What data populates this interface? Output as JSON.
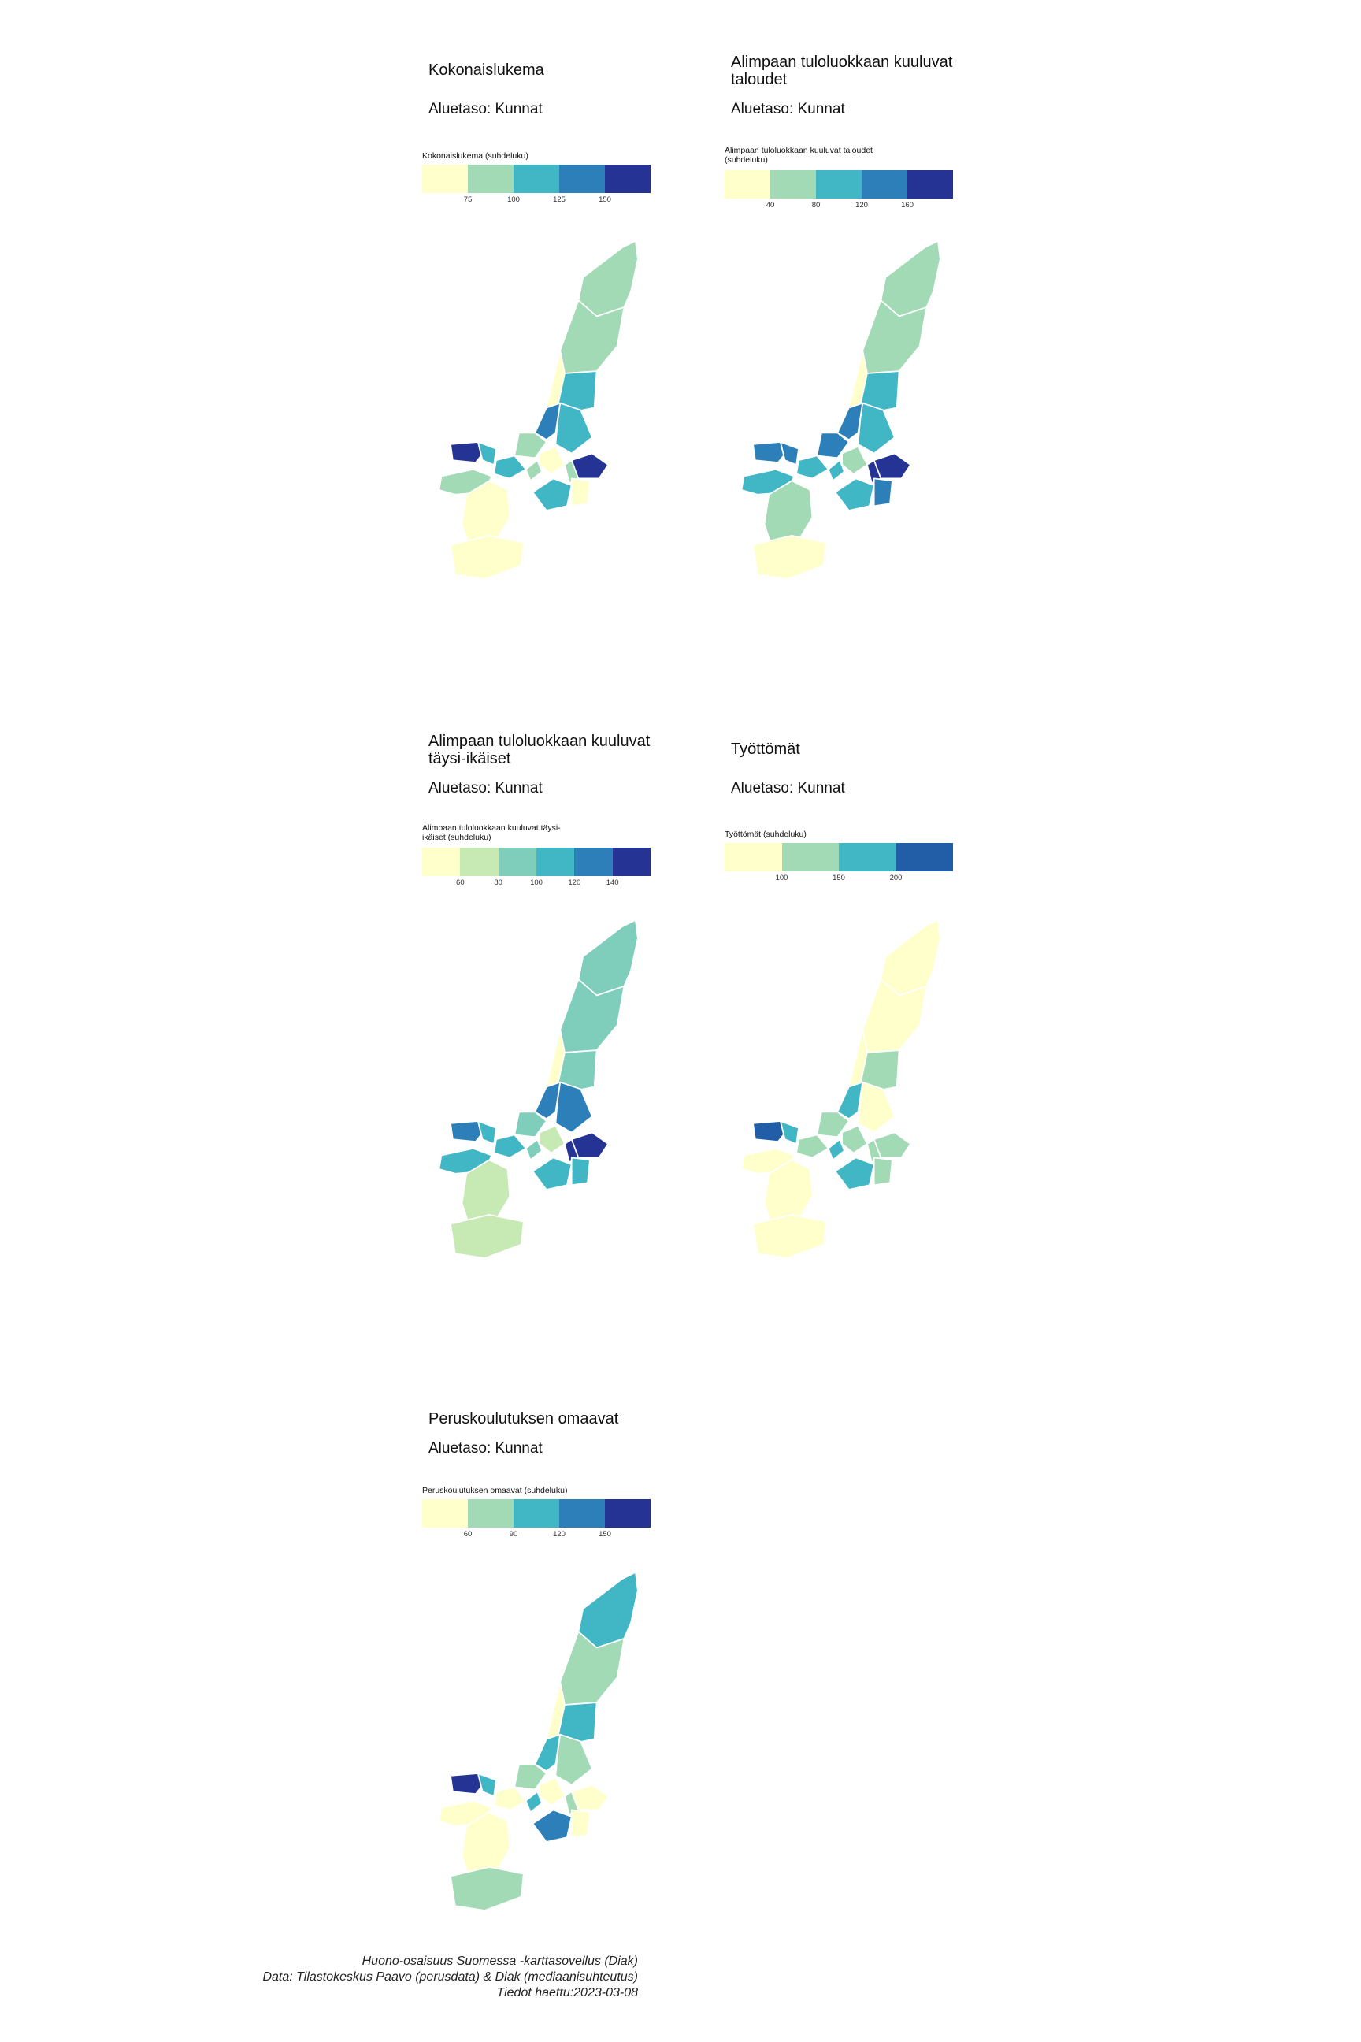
{
  "panels": [
    {
      "title": "Kokonaislukema",
      "subtitle": "Aluetaso: Kunnat",
      "legend_title": "Kokonaislukema (suhdeluku)",
      "legend_ticks": [
        "75",
        "100",
        "125",
        "150"
      ],
      "legend_colors": [
        "#ffffcc",
        "#a1dab4",
        "#41b6c4",
        "#2c7fb8",
        "#253494"
      ],
      "region_classes": [
        1,
        1,
        0,
        2,
        3,
        2,
        1,
        2,
        1,
        0,
        4,
        2,
        1,
        0,
        0,
        2,
        4,
        1,
        0
      ]
    },
    {
      "title": "Alimpaan tuloluokkaan kuuluvat taloudet",
      "subtitle": "Aluetaso: Kunnat",
      "legend_title": "Alimpaan tuloluokkaan kuuluvat taloudet (suhdeluku)",
      "legend_ticks": [
        "40",
        "80",
        "120",
        "160"
      ],
      "legend_colors": [
        "#ffffcc",
        "#a1dab4",
        "#41b6c4",
        "#2c7fb8",
        "#253494"
      ],
      "region_classes": [
        1,
        1,
        0,
        2,
        3,
        2,
        3,
        2,
        2,
        1,
        3,
        3,
        2,
        1,
        0,
        2,
        4,
        4,
        3
      ]
    },
    {
      "title": "Alimpaan tuloluokkaan kuuluvat täysi-ikäiset",
      "subtitle": "Aluetaso: Kunnat",
      "legend_title": "Alimpaan tuloluokkaan kuuluvat täysi-ikäiset (suhdeluku)",
      "legend_ticks": [
        "60",
        "80",
        "100",
        "120",
        "140"
      ],
      "legend_colors": [
        "#ffffcc",
        "#c7e9b4",
        "#7fcdbb",
        "#41b6c4",
        "#2c7fb8",
        "#253494"
      ],
      "region_classes": [
        2,
        2,
        0,
        2,
        4,
        4,
        2,
        3,
        2,
        1,
        4,
        3,
        3,
        1,
        1,
        3,
        5,
        5,
        3
      ]
    },
    {
      "title": "Työttömät",
      "subtitle": "Aluetaso: Kunnat",
      "legend_title": "Työttömät (suhdeluku)",
      "legend_ticks": [
        "100",
        "150",
        "200"
      ],
      "legend_colors": [
        "#ffffcc",
        "#a1dab4",
        "#41b6c4",
        "#225ea8"
      ],
      "region_classes": [
        0,
        0,
        0,
        1,
        2,
        0,
        1,
        1,
        2,
        1,
        3,
        2,
        0,
        0,
        0,
        2,
        1,
        1,
        1
      ]
    },
    {
      "title": "Peruskoulutuksen omaavat",
      "subtitle": "Aluetaso: Kunnat",
      "legend_title": "Peruskoulutuksen omaavat (suhdeluku)",
      "legend_ticks": [
        "60",
        "90",
        "120",
        "150"
      ],
      "legend_colors": [
        "#ffffcc",
        "#a1dab4",
        "#41b6c4",
        "#2c7fb8",
        "#253494"
      ],
      "region_classes": [
        2,
        1,
        0,
        2,
        2,
        1,
        1,
        0,
        2,
        0,
        4,
        2,
        0,
        0,
        1,
        3,
        0,
        1,
        0
      ]
    }
  ],
  "caption": {
    "line1": "Huono-osaisuus Suomessa -karttasovellus (Diak)",
    "line2": "Data: Tilastokeskus Paavo (perusdata) & Diak (mediaanisuhteutus)",
    "line3": "Tiedot haettu:2023-03-08"
  }
}
